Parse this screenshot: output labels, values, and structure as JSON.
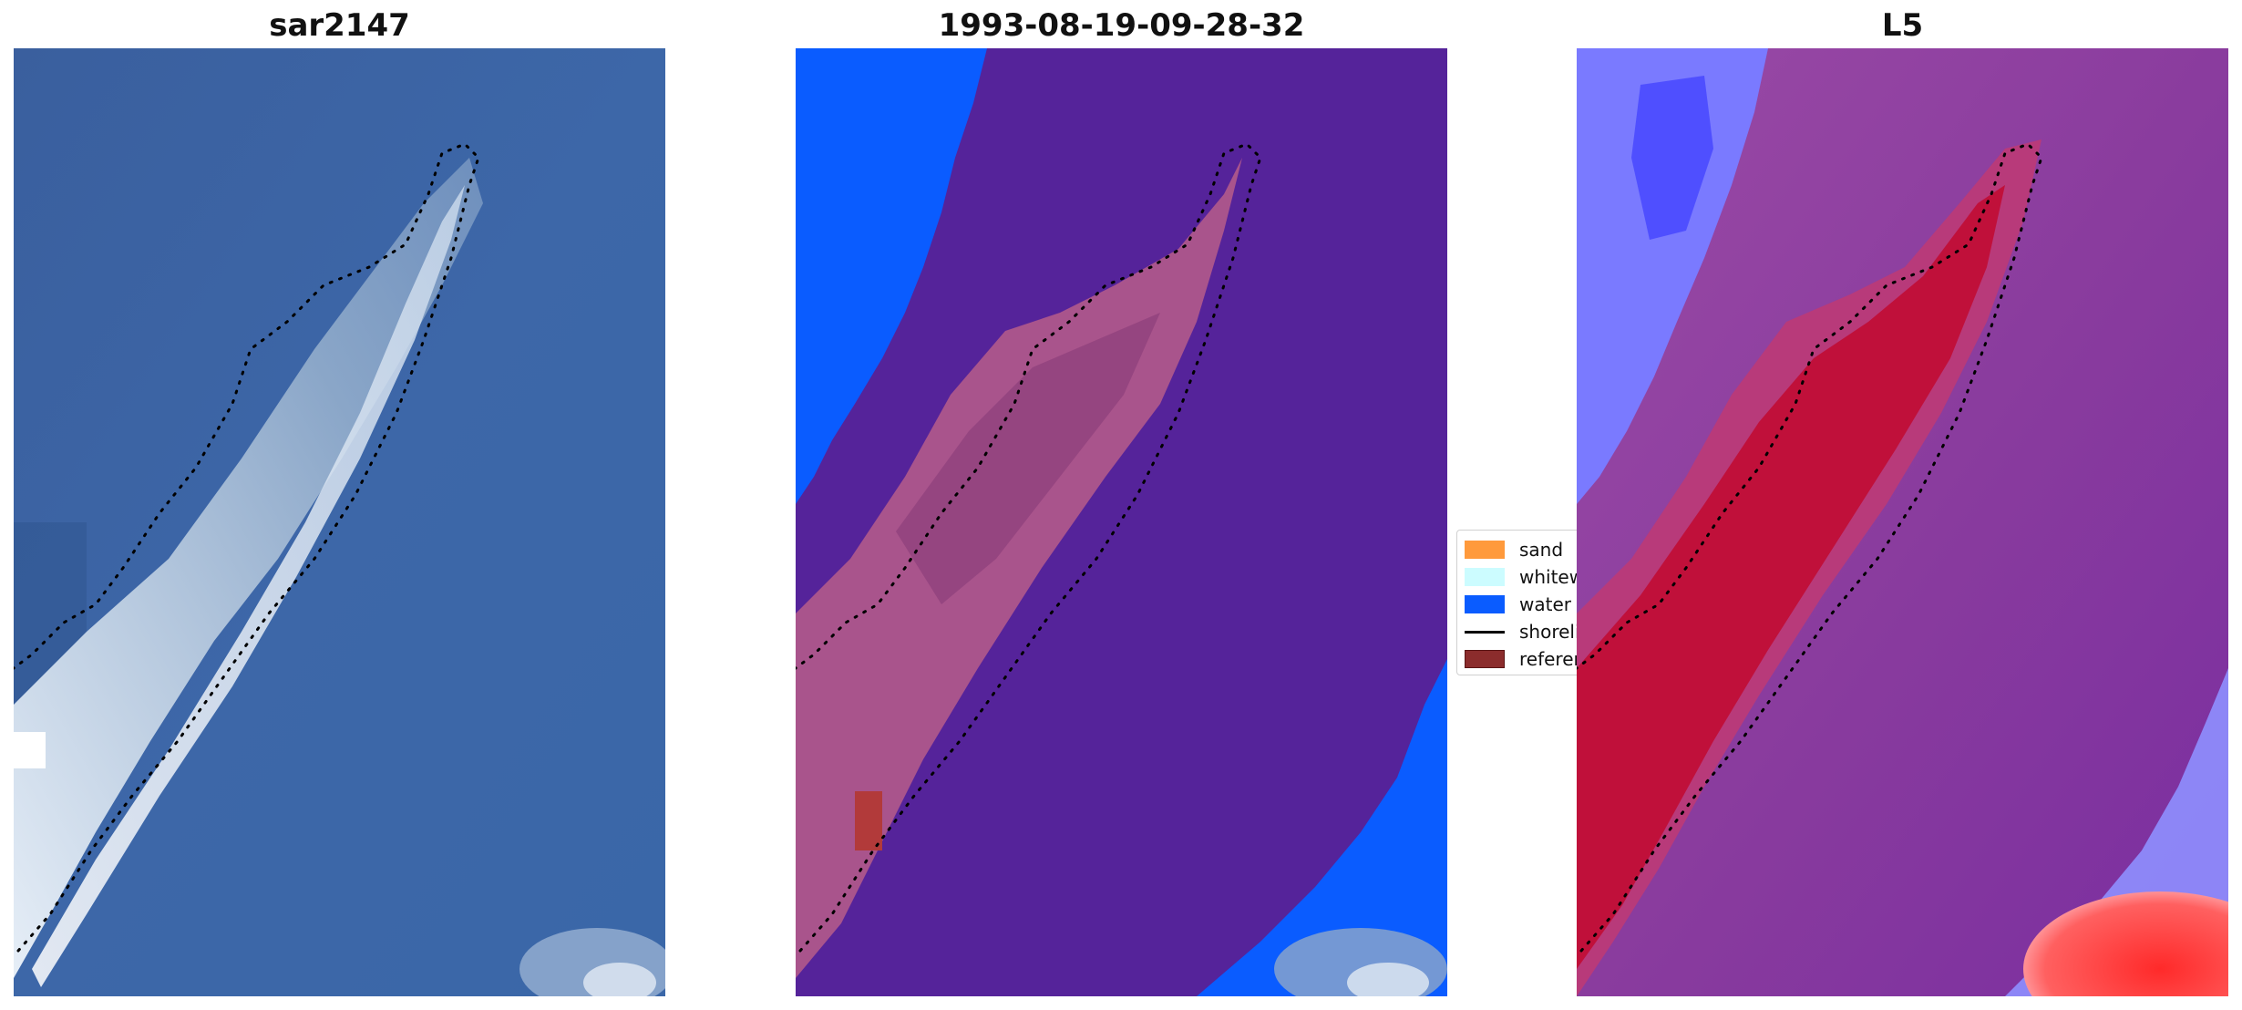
{
  "panels": [
    {
      "title": "sar2147"
    },
    {
      "title": "1993-08-19-09-28-32"
    },
    {
      "title": "L5"
    }
  ],
  "legend": {
    "items": [
      {
        "label": "sand",
        "color": "#ff9a3c"
      },
      {
        "label": "whitewater",
        "color": "#ccfcff"
      },
      {
        "label": "water",
        "color": "#0a5cff"
      },
      {
        "label": "shoreline",
        "color": "#000000"
      },
      {
        "label": "reference",
        "color": "#8b2c2c"
      }
    ]
  },
  "colors": {
    "ocean_rgb": "#3b64a6",
    "class_background": "#55239a",
    "class_water": "#0a5cff",
    "class_land_tint": "#a9548c",
    "class_reference": "#b23a3a",
    "index_land": "#c0103a",
    "index_sea": "#8a3aa0",
    "index_water": "#7a7aff",
    "shoreline": "#000000"
  }
}
